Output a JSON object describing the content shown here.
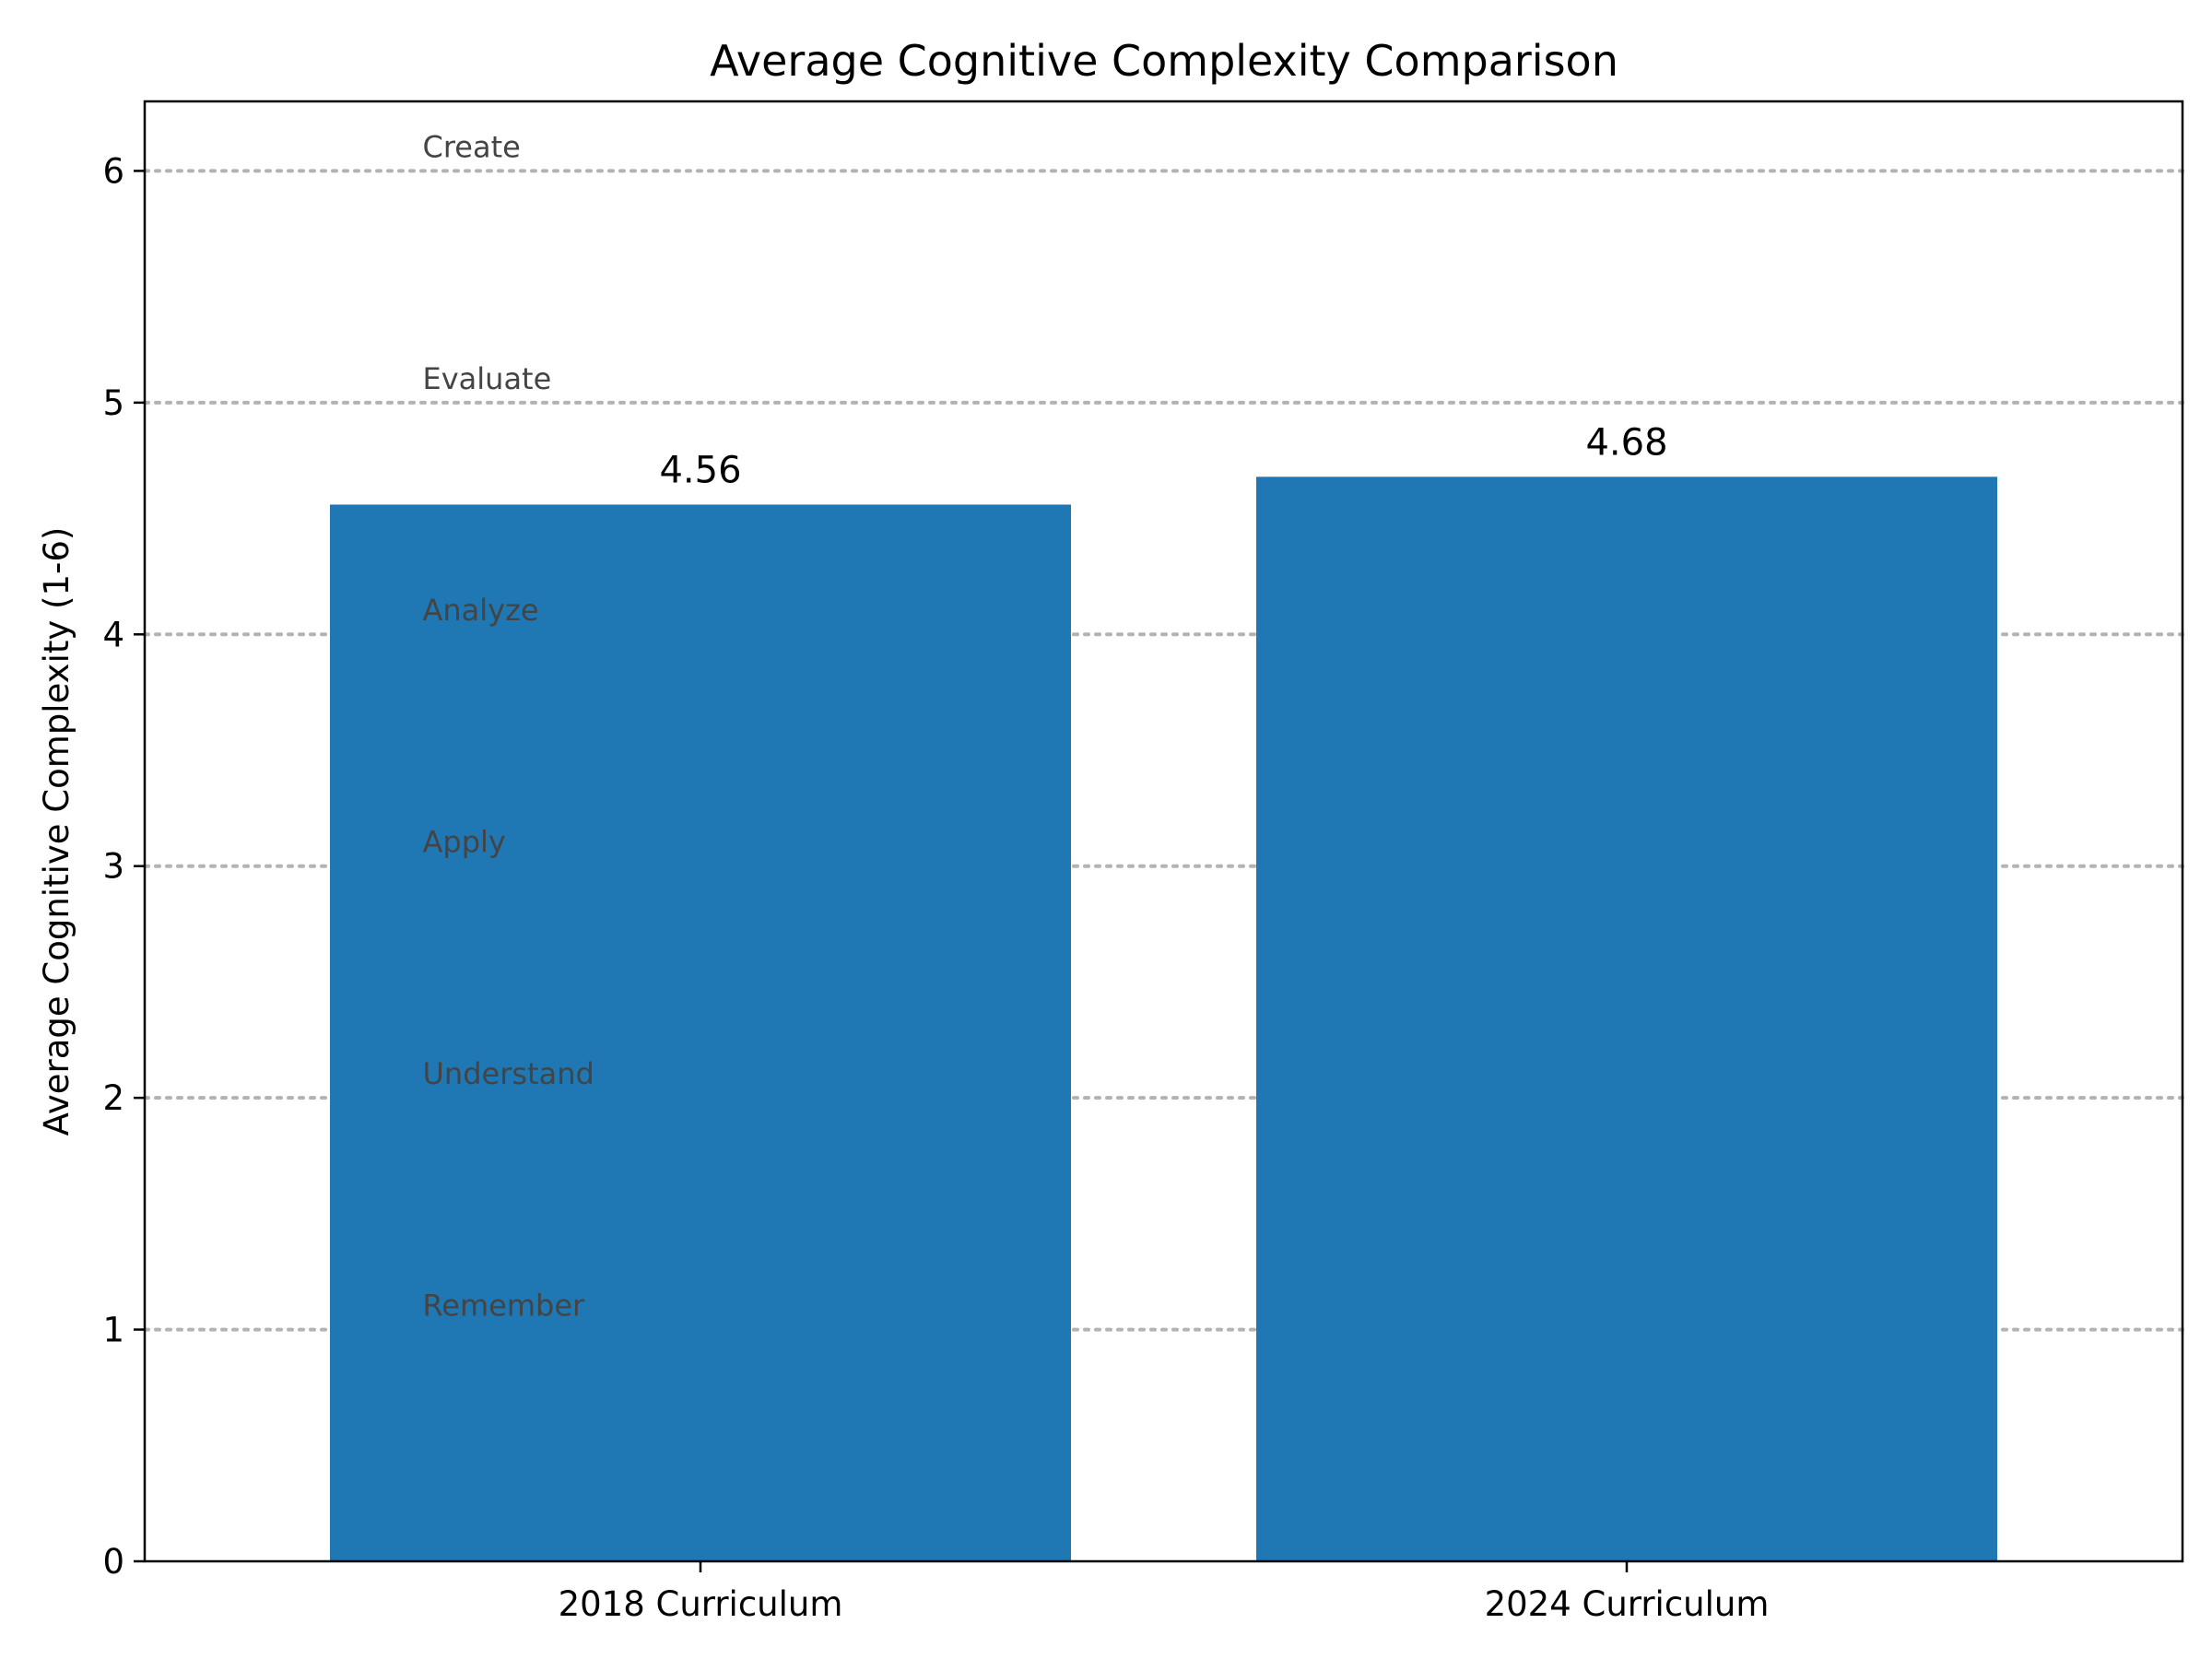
{
  "chart_data": {
    "type": "bar",
    "title": "Average Cognitive Complexity Comparison",
    "xlabel": "",
    "ylabel": "Average Cognitive Complexity (1-6)",
    "categories": [
      "2018 Curriculum",
      "2024 Curriculum"
    ],
    "values": [
      4.56,
      4.68
    ],
    "value_labels": [
      "4.56",
      "4.68"
    ],
    "ylim": [
      0,
      6.3
    ],
    "yticks": [
      0,
      1,
      2,
      3,
      4,
      5,
      6
    ],
    "ytick_labels": [
      "0",
      "1",
      "2",
      "3",
      "4",
      "5",
      "6"
    ],
    "grid": false,
    "reference_lines": [
      {
        "y": 1,
        "label": "Remember"
      },
      {
        "y": 2,
        "label": "Understand"
      },
      {
        "y": 3,
        "label": "Apply"
      },
      {
        "y": 4,
        "label": "Analyze"
      },
      {
        "y": 5,
        "label": "Evaluate"
      },
      {
        "y": 6,
        "label": "Create"
      }
    ],
    "colors": {
      "bar": "#1f77b4",
      "reference_line": "#b3b3b3",
      "level_label": "#444444",
      "axis": "#000000"
    }
  }
}
